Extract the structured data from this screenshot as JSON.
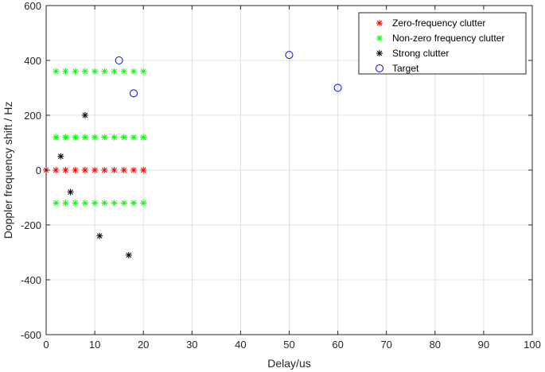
{
  "chart_data": {
    "type": "scatter",
    "xlabel": "Delay/us",
    "ylabel": "Doppler frequency shift / Hz",
    "xlim": [
      0,
      100
    ],
    "ylim": [
      -600,
      600
    ],
    "xticks": [
      0,
      10,
      20,
      30,
      40,
      50,
      60,
      70,
      80,
      90,
      100
    ],
    "yticks": [
      -600,
      -400,
      -200,
      0,
      200,
      400,
      600
    ],
    "grid": true,
    "legend_position": "top-right",
    "series": [
      {
        "name": "Zero-frequency clutter",
        "marker": "asterisk",
        "color": "#ff0000",
        "points": [
          [
            0,
            0
          ],
          [
            2,
            0
          ],
          [
            4,
            0
          ],
          [
            6,
            0
          ],
          [
            8,
            0
          ],
          [
            10,
            0
          ],
          [
            12,
            0
          ],
          [
            14,
            0
          ],
          [
            16,
            0
          ],
          [
            18,
            0
          ],
          [
            20,
            0
          ]
        ]
      },
      {
        "name": "Non-zero frequency clutter",
        "marker": "asterisk",
        "color": "#00ff00",
        "points": [
          [
            2,
            360
          ],
          [
            4,
            360
          ],
          [
            6,
            360
          ],
          [
            8,
            360
          ],
          [
            10,
            360
          ],
          [
            12,
            360
          ],
          [
            14,
            360
          ],
          [
            16,
            360
          ],
          [
            18,
            360
          ],
          [
            20,
            360
          ],
          [
            2,
            120
          ],
          [
            4,
            120
          ],
          [
            6,
            120
          ],
          [
            8,
            120
          ],
          [
            10,
            120
          ],
          [
            12,
            120
          ],
          [
            14,
            120
          ],
          [
            16,
            120
          ],
          [
            18,
            120
          ],
          [
            20,
            120
          ],
          [
            2,
            -120
          ],
          [
            4,
            -120
          ],
          [
            6,
            -120
          ],
          [
            8,
            -120
          ],
          [
            10,
            -120
          ],
          [
            12,
            -120
          ],
          [
            14,
            -120
          ],
          [
            16,
            -120
          ],
          [
            18,
            -120
          ],
          [
            20,
            -120
          ]
        ]
      },
      {
        "name": "Strong clutter",
        "marker": "asterisk",
        "color": "#000000",
        "points": [
          [
            8,
            200
          ],
          [
            3,
            50
          ],
          [
            5,
            -80
          ],
          [
            11,
            -240
          ],
          [
            17,
            -310
          ]
        ]
      },
      {
        "name": "Target",
        "marker": "circle",
        "color": "#0000ff",
        "points": [
          [
            15,
            400
          ],
          [
            18,
            280
          ],
          [
            50,
            420
          ],
          [
            60,
            300
          ]
        ]
      }
    ]
  }
}
